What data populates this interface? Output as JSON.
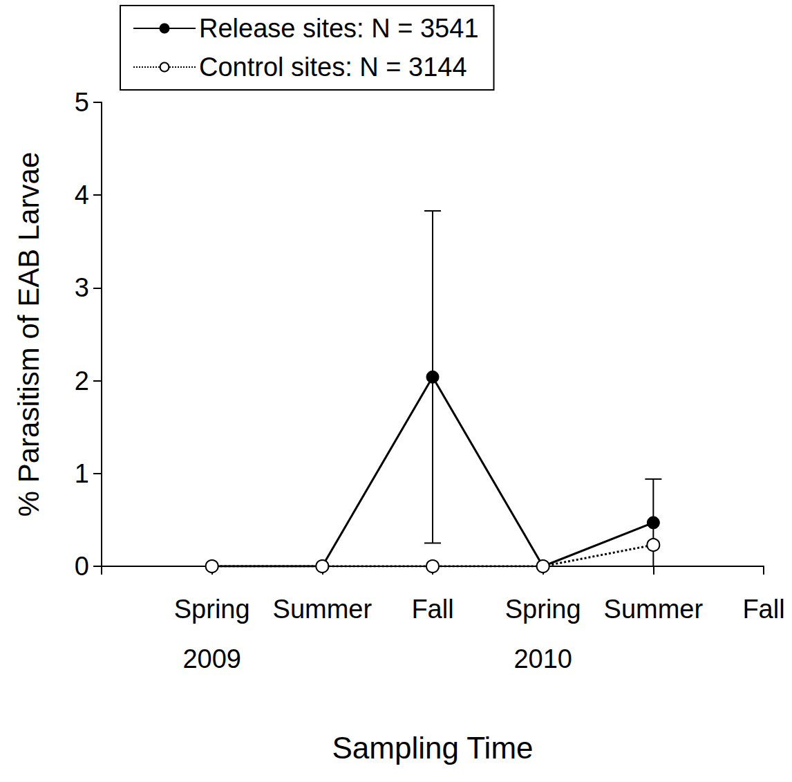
{
  "chart_data": {
    "type": "line",
    "x_title": "Sampling Time",
    "y_title": "% Parasitism of EAB Larvae",
    "categories": [
      null,
      "Spring",
      "Summer",
      "Fall",
      "Spring",
      "Summer",
      "Fall"
    ],
    "year_labels": [
      null,
      "2009",
      null,
      null,
      "2010",
      null,
      null
    ],
    "series": [
      {
        "name": "Release sites: N = 3541",
        "color": "#000000",
        "marker": "filled_circle",
        "line_style": "solid",
        "values": [
          null,
          0,
          0,
          2.04,
          0,
          0.47,
          null
        ],
        "error_low": [
          null,
          null,
          null,
          0.25,
          null,
          0,
          null
        ],
        "error_high": [
          null,
          null,
          null,
          3.83,
          null,
          0.94,
          null
        ]
      },
      {
        "name": "Control sites: N = 3144",
        "color": "#000000",
        "marker": "open_circle",
        "line_style": "dotted",
        "values": [
          null,
          0,
          0,
          0,
          0,
          0.23,
          null
        ]
      }
    ],
    "ylim": [
      0,
      5
    ],
    "yticks": [
      0,
      1,
      2,
      3,
      4,
      5
    ],
    "grid": false,
    "legend": "upper left"
  }
}
